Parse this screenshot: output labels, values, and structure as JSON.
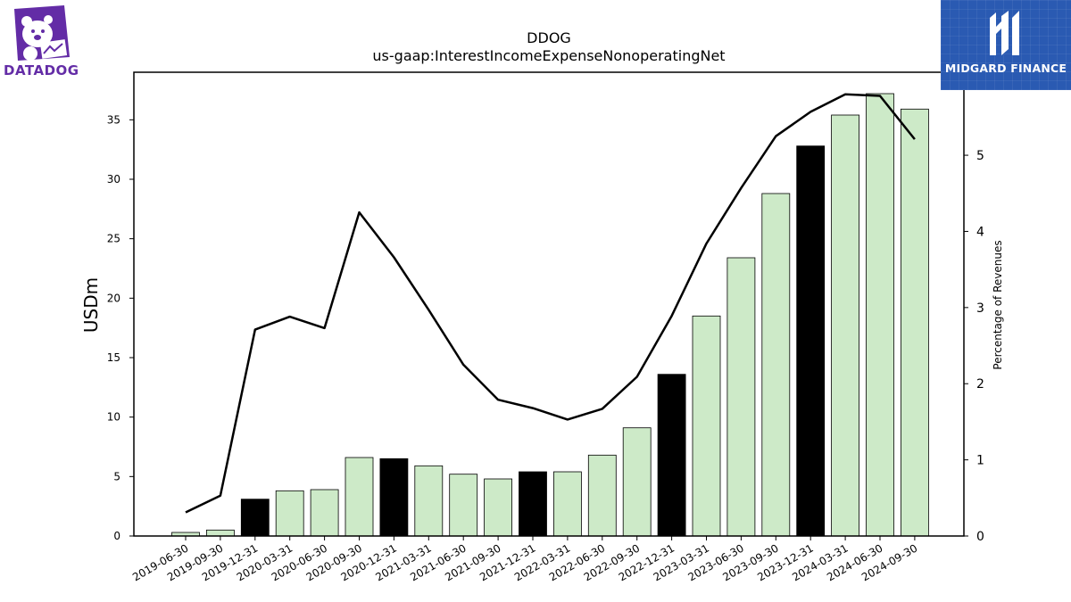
{
  "brand": {
    "left_logo_text": "DATADOG",
    "right_logo_text": "MIDGARD FINANCE",
    "datadog_color": "#632ca6",
    "midgard_color": "#2a5ab2"
  },
  "chart_data": {
    "type": "bar",
    "title": "DDOG",
    "subtitle": "us-gaap:InterestIncomeExpenseNonoperatingNet",
    "ylabel": "USDm",
    "y2label": "Percentage of Revenues",
    "ylim": [
      0,
      39
    ],
    "y2lim": [
      0,
      6.09
    ],
    "yticks": [
      0,
      5,
      10,
      15,
      20,
      25,
      30,
      35
    ],
    "y2ticks": [
      0,
      1,
      2,
      3,
      4,
      5
    ],
    "categories": [
      "2019-06-30",
      "2019-09-30",
      "2019-12-31",
      "2020-03-31",
      "2020-06-30",
      "2020-09-30",
      "2020-12-31",
      "2021-03-31",
      "2021-06-30",
      "2021-09-30",
      "2021-12-31",
      "2022-03-31",
      "2022-06-30",
      "2022-09-30",
      "2022-12-31",
      "2023-03-31",
      "2023-06-30",
      "2023-09-30",
      "2023-12-31",
      "2024-03-31",
      "2024-06-30",
      "2024-09-30"
    ],
    "series": [
      {
        "kind": "bar",
        "values": [
          0.3,
          0.5,
          3.1,
          3.8,
          3.9,
          6.6,
          6.5,
          5.9,
          5.2,
          4.8,
          5.4,
          5.4,
          6.8,
          9.1,
          13.6,
          18.5,
          23.4,
          28.8,
          32.8,
          35.4,
          37.2,
          35.9
        ]
      },
      {
        "kind": "line",
        "axis": "right",
        "values": [
          0.31,
          0.53,
          2.71,
          2.88,
          2.73,
          4.25,
          3.66,
          2.97,
          2.25,
          1.79,
          1.68,
          1.53,
          1.67,
          2.09,
          2.89,
          3.84,
          4.57,
          5.25,
          5.57,
          5.8,
          5.78,
          5.21
        ]
      }
    ],
    "bar_colors": {
      "quarter": "#cdeac8",
      "year_end": "#000000",
      "edge": "#000000"
    },
    "line_color": "#000000"
  }
}
